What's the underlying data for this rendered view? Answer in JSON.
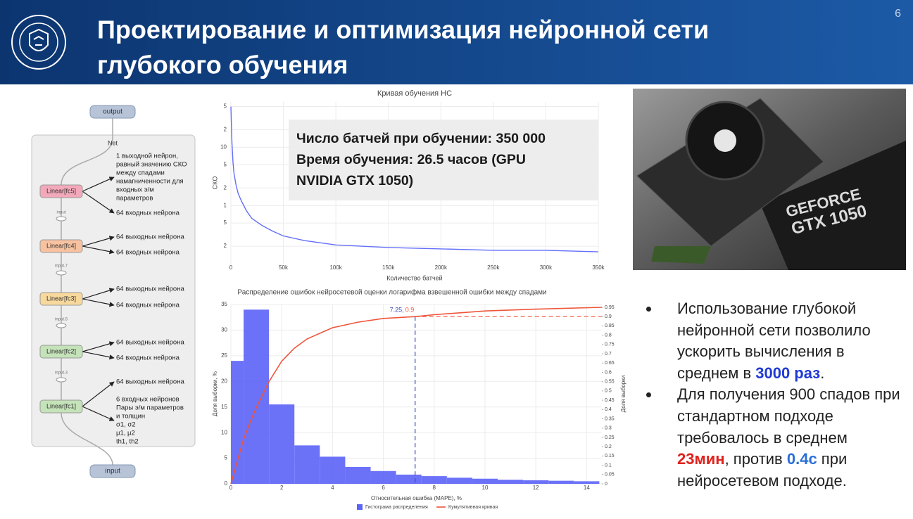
{
  "header": {
    "title_lines": [
      "Проектирование и оптимизация нейронной сети",
      "глубокого обучения"
    ],
    "page_number": 6
  },
  "diagram": {
    "output": "output",
    "input": "input",
    "group_label": "Net",
    "layers": [
      {
        "name": "Linear[fc5]",
        "color": "#f4a9ba",
        "out_lines": [
          "1 выходной нейрон,",
          "равный значению СКО",
          "между спадами",
          "намагниченности для",
          "входных э/м",
          "параметров"
        ],
        "in_lines": [
          "64 входных нейрона"
        ]
      },
      {
        "name": "Linear[fc4]",
        "color": "#f8c2a0",
        "out_lines": [
          "64 выходных нейрона"
        ],
        "in_lines": [
          "64 входных нейрона"
        ]
      },
      {
        "name": "Linear[fc3]",
        "color": "#f8d89c",
        "out_lines": [
          "64 выходных нейрона"
        ],
        "in_lines": [
          "64 входных нейрона"
        ]
      },
      {
        "name": "Linear[fc2]",
        "color": "#c4e3b8",
        "out_lines": [
          "64 выходных нейрона"
        ],
        "in_lines": [
          "64 входных нейрона"
        ]
      },
      {
        "name": "Linear[fc1]",
        "color": "#c4e3b8",
        "out_lines": [
          "64 выходных нейрона"
        ],
        "in_lines": [
          "6 входных нейронов",
          "Пары э/м параметров",
          "и толщин",
          "σ1, σ2",
          "μ1, μ2",
          "th1, th2"
        ]
      }
    ],
    "edge_labels": [
      "input",
      "input.7",
      "input.5",
      "input.3"
    ]
  },
  "chart_data": [
    {
      "type": "line",
      "title": "Кривая обучения НС",
      "xlabel": "Количество батчей",
      "ylabel": "СКО",
      "log_y": true,
      "grid": true,
      "x": [
        0,
        1000,
        2000,
        3000,
        5000,
        7000,
        10000,
        15000,
        20000,
        30000,
        40000,
        50000,
        70000,
        100000,
        150000,
        200000,
        250000,
        300000,
        350000
      ],
      "series": [
        {
          "color": "#636efa",
          "values": [
            50,
            12,
            5.5,
            3.5,
            2.2,
            1.6,
            1.2,
            0.8,
            0.6,
            0.45,
            0.36,
            0.3,
            0.25,
            0.21,
            0.19,
            0.18,
            0.17,
            0.17,
            0.16
          ]
        }
      ],
      "xlim": [
        0,
        350000
      ],
      "xticks": [
        0,
        {
          "value": 50000,
          "label": "50k"
        },
        {
          "value": 100000,
          "label": "100k"
        },
        {
          "value": 150000,
          "label": "150k"
        },
        {
          "value": 200000,
          "label": "200k"
        },
        {
          "value": 250000,
          "label": "250k"
        },
        {
          "value": 300000,
          "label": "300k"
        },
        {
          "value": 350000,
          "label": "350k"
        }
      ],
      "ylim": [
        0.1,
        60
      ],
      "yticks": [
        {
          "value": 50,
          "label": "5"
        },
        {
          "value": 20,
          "label": "2"
        },
        10,
        5,
        2,
        1,
        {
          "value": 0.5,
          "label": "5"
        },
        {
          "value": 0.2,
          "label": "2"
        }
      ]
    },
    {
      "type": "histogram",
      "title": "Распределение ошибок нейросетевой оценки логарифма взвешенной ошибки между спадами",
      "xlabel": "Относительная ошибка (MAPE), %",
      "ylabel": "Доля выборки, %",
      "y2label": "Доля выборки",
      "legend": "bottom",
      "bins": [
        0,
        0.5,
        1.5,
        2.5,
        3.5,
        4.5,
        5.5,
        6.5,
        7.5,
        8.5,
        9.5,
        10.5,
        11.5,
        12.5,
        13.5,
        14.5
      ],
      "series": [
        {
          "name": "Гистограма распределения",
          "color": "#5c63f7",
          "values": [
            24,
            34,
            15.5,
            7.5,
            5.3,
            3.3,
            2.5,
            1.8,
            1.5,
            1.2,
            1,
            0.8,
            0.7,
            0.6,
            0.5
          ]
        },
        {
          "name": "Кумулятивная кривая",
          "color": "#ef553b",
          "type": "line",
          "axis": "y2",
          "x": [
            0,
            0.25,
            0.5,
            0.75,
            1,
            1.5,
            2,
            2.5,
            3,
            4,
            5,
            6,
            7.25,
            8,
            10,
            12,
            14.6
          ],
          "values": [
            0,
            0.12,
            0.24,
            0.33,
            0.41,
            0.55,
            0.66,
            0.73,
            0.78,
            0.84,
            0.87,
            0.89,
            0.9,
            0.91,
            0.93,
            0.94,
            0.95
          ]
        }
      ],
      "annotation": {
        "x": 7.25,
        "y": 0.9,
        "x_label": "7.25,",
        "y_label": "0.9"
      },
      "xlim": [
        0,
        14.6
      ],
      "xticks": [
        0,
        2,
        4,
        6,
        8,
        10,
        12,
        14
      ],
      "ylim": [
        0,
        35
      ],
      "yticks": [
        0,
        5,
        10,
        15,
        20,
        25,
        30,
        35
      ],
      "y2lim": [
        0,
        0.965
      ],
      "y2ticks": [
        0,
        0.05,
        0.1,
        0.15,
        0.2,
        0.25,
        0.3,
        0.35,
        0.4,
        0.45,
        0.5,
        0.55,
        0.6,
        0.65,
        0.7,
        0.75,
        0.8,
        0.85,
        0.9,
        0.95
      ]
    }
  ],
  "overlay": {
    "lines": [
      "Число батчей при обучении: 350 000",
      "Время обучения: 26.5 часов (GPU",
      "NVIDIA GTX 1050)"
    ]
  },
  "photo": {
    "brand": "GEFORCE",
    "model": "GTX 1050"
  },
  "bullets": [
    {
      "parts": [
        "Использование глубокой нейронной сети позволило ускорить вычисления в среднем в ",
        "3000 раз",
        "."
      ]
    },
    {
      "parts": [
        "Для получения 900 спадов при стандартном подходе требовалось в среднем ",
        "23мин",
        ", против ",
        "0.4с",
        " при нейросетевом подходе."
      ]
    }
  ]
}
